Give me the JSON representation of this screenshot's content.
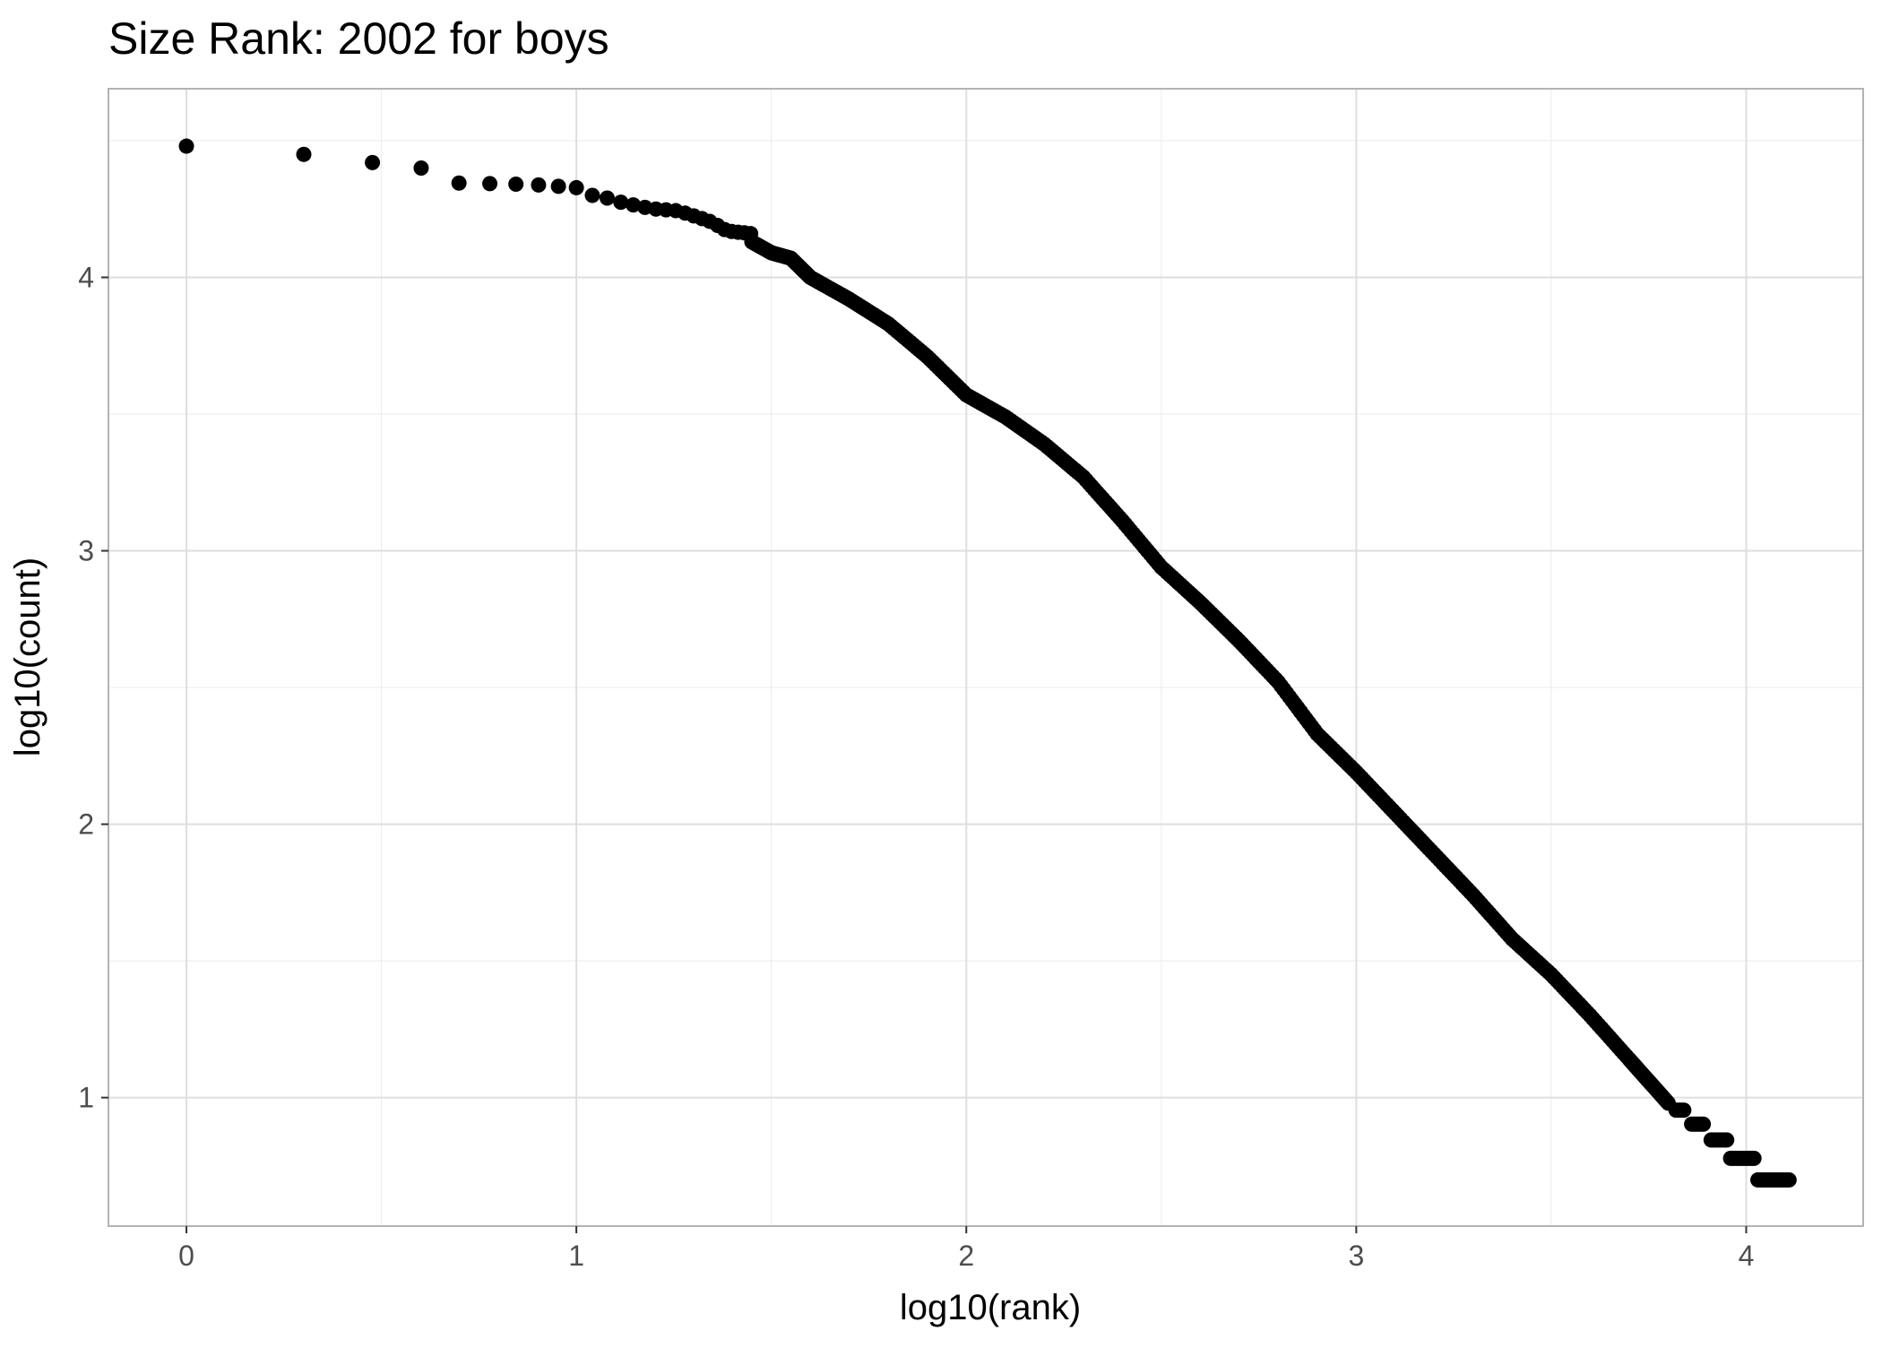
{
  "chart_data": {
    "type": "scatter",
    "title": "Size Rank: 2002 for boys",
    "xlabel": "log10(rank)",
    "ylabel": "log10(count)",
    "xlim": [
      -0.2,
      4.3
    ],
    "ylim": [
      0.53,
      4.69
    ],
    "x_ticks": [
      0,
      1,
      2,
      3,
      4
    ],
    "y_ticks": [
      1,
      2,
      3,
      4
    ],
    "x_tick_labels": [
      "0",
      "1",
      "2",
      "3",
      "4"
    ],
    "y_tick_labels": [
      "1",
      "2",
      "3",
      "4"
    ],
    "grid": true,
    "legend": "none",
    "point_color": "#000000",
    "panel_border_color": "#b3b3b3",
    "grid_color": "#ebebeb",
    "discrete_points": [
      [
        0.0,
        4.48
      ],
      [
        0.301,
        4.45
      ],
      [
        0.477,
        4.42
      ],
      [
        0.602,
        4.4
      ],
      [
        0.699,
        4.345
      ],
      [
        0.778,
        4.343
      ],
      [
        0.845,
        4.341
      ],
      [
        0.903,
        4.338
      ],
      [
        0.954,
        4.333
      ],
      [
        1.0,
        4.328
      ],
      [
        1.041,
        4.3
      ],
      [
        1.079,
        4.29
      ],
      [
        1.114,
        4.275
      ],
      [
        1.146,
        4.265
      ],
      [
        1.176,
        4.256
      ],
      [
        1.204,
        4.25
      ],
      [
        1.23,
        4.247
      ],
      [
        1.255,
        4.244
      ],
      [
        1.279,
        4.235
      ],
      [
        1.301,
        4.225
      ],
      [
        1.322,
        4.215
      ],
      [
        1.342,
        4.205
      ],
      [
        1.362,
        4.19
      ],
      [
        1.38,
        4.175
      ],
      [
        1.398,
        4.168
      ],
      [
        1.415,
        4.165
      ],
      [
        1.431,
        4.163
      ],
      [
        1.447,
        4.16
      ]
    ],
    "curve_knots": [
      [
        1.45,
        4.13
      ],
      [
        1.5,
        4.09
      ],
      [
        1.55,
        4.07
      ],
      [
        1.6,
        4.0
      ],
      [
        1.7,
        3.92
      ],
      [
        1.8,
        3.83
      ],
      [
        1.9,
        3.71
      ],
      [
        2.0,
        3.57
      ],
      [
        2.1,
        3.49
      ],
      [
        2.2,
        3.39
      ],
      [
        2.3,
        3.27
      ],
      [
        2.4,
        3.11
      ],
      [
        2.5,
        2.94
      ],
      [
        2.6,
        2.81
      ],
      [
        2.7,
        2.67
      ],
      [
        2.8,
        2.52
      ],
      [
        2.9,
        2.33
      ],
      [
        3.0,
        2.19
      ],
      [
        3.1,
        2.04
      ],
      [
        3.2,
        1.89
      ],
      [
        3.3,
        1.74
      ],
      [
        3.4,
        1.58
      ],
      [
        3.5,
        1.45
      ],
      [
        3.6,
        1.3
      ],
      [
        3.7,
        1.14
      ],
      [
        3.75,
        1.06
      ],
      [
        3.8,
        0.98
      ]
    ],
    "step_levels": [
      {
        "y": 0.954,
        "x_start": 3.82,
        "x_end": 3.84
      },
      {
        "y": 0.903,
        "x_start": 3.86,
        "x_end": 3.89
      },
      {
        "y": 0.845,
        "x_start": 3.91,
        "x_end": 3.95
      },
      {
        "y": 0.778,
        "x_start": 3.96,
        "x_end": 4.02
      },
      {
        "y": 0.699,
        "x_start": 4.03,
        "x_end": 4.11
      }
    ]
  }
}
